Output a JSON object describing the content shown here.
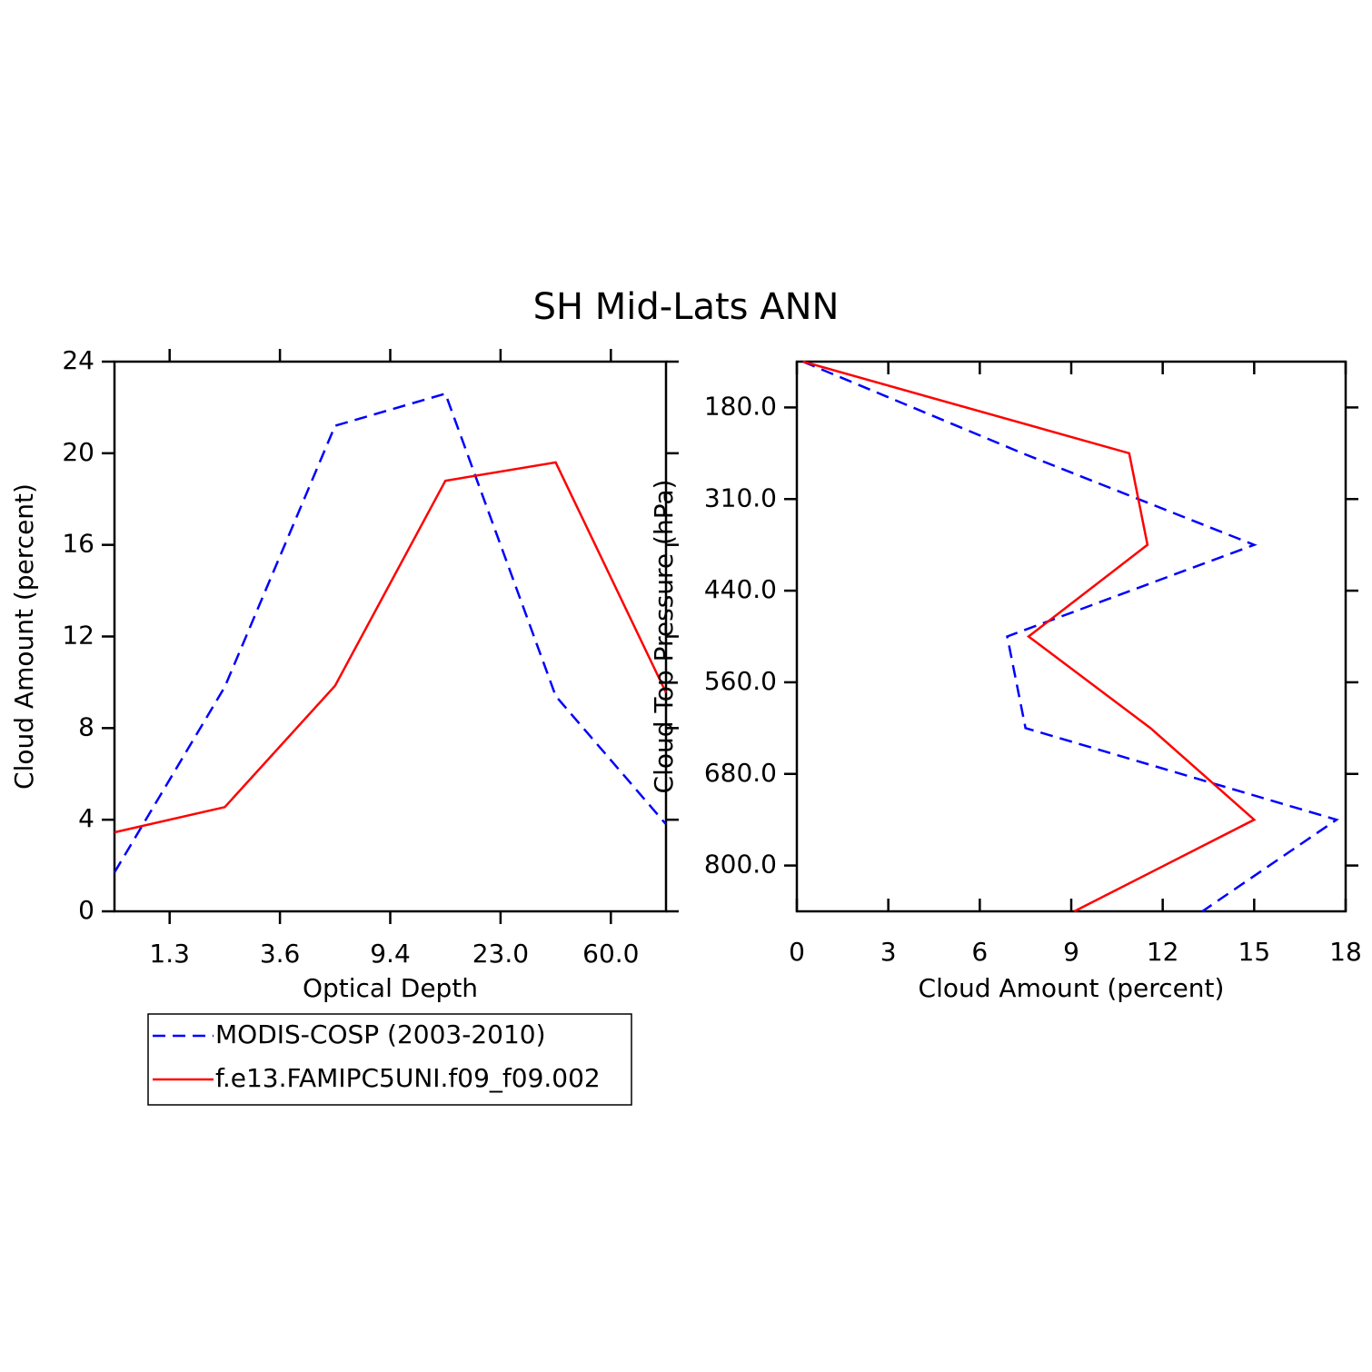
{
  "title": "SH Mid-Lats ANN",
  "chart_data": [
    {
      "type": "line",
      "orientation": "horizontal",
      "x_label": "Optical Depth",
      "y_label": "Cloud Amount (percent)",
      "categories": [
        null,
        null,
        null,
        null,
        null,
        null
      ],
      "category_boundaries": [
        "1.3",
        "3.6",
        "9.4",
        "23.0",
        "60.0"
      ],
      "ylim": [
        0,
        24
      ],
      "yticks": [
        0,
        4,
        8,
        12,
        16,
        20,
        24
      ],
      "series": [
        {
          "name": "MODIS-COSP (2003-2010)",
          "color": "#0000ff",
          "dashed": true,
          "values": [
            1.7,
            9.8,
            21.2,
            22.6,
            9.4,
            3.8
          ]
        },
        {
          "name": "f.e13.FAMIPC5UNI.f09_f09.002",
          "color": "#ff0000",
          "dashed": false,
          "values": [
            3.45,
            4.55,
            9.85,
            18.8,
            19.6,
            9.55
          ]
        }
      ]
    },
    {
      "type": "line",
      "orientation": "vertical",
      "x_label": "Cloud Amount (percent)",
      "y_label": "Cloud Top Pressure (hPa)",
      "categories": [
        null,
        null,
        null,
        null,
        null,
        null,
        null
      ],
      "category_boundaries": [
        "180.0",
        "310.0",
        "440.0",
        "560.0",
        "680.0",
        "800.0"
      ],
      "xlim": [
        0,
        18
      ],
      "xticks": [
        0,
        3,
        6,
        9,
        12,
        15,
        18
      ],
      "series": [
        {
          "color": "#0000ff",
          "dashed": true,
          "values": [
            0.2,
            7.4,
            15.0,
            6.9,
            7.5,
            17.7,
            13.3
          ]
        },
        {
          "color": "#ff0000",
          "dashed": false,
          "values": [
            0.2,
            10.9,
            11.5,
            7.6,
            11.6,
            15.0,
            9.1
          ]
        }
      ]
    }
  ]
}
